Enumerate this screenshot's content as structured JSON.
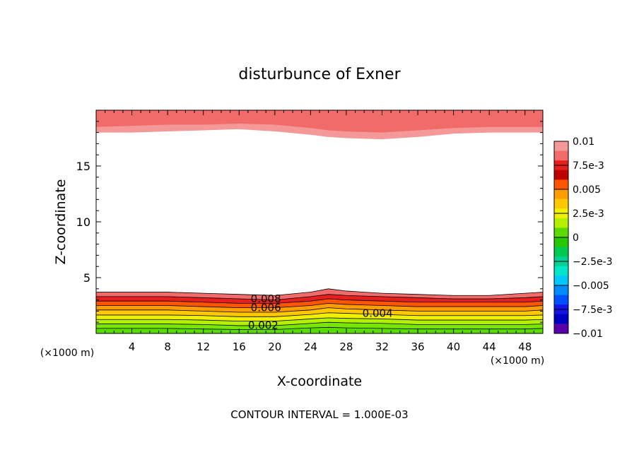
{
  "chart_data": {
    "type": "contour",
    "title": "disturbunce of Exner",
    "xlabel": "X-coordinate",
    "ylabel": "Z-coordinate",
    "x_unit": "(×1000 m)",
    "x_unit_right": "(×1000 m)",
    "xlim": [
      0,
      50
    ],
    "ylim": [
      0,
      20
    ],
    "x_ticks": [
      "4",
      "8",
      "12",
      "16",
      "20",
      "24",
      "28",
      "32",
      "36",
      "40",
      "44",
      "48"
    ],
    "y_ticks": [
      "5",
      "10",
      "15"
    ],
    "footer": "CONTOUR INTERVAL = 1.000E-03",
    "contour_labels": [
      "0.008",
      "0.006",
      "0.004",
      "0.002"
    ],
    "colorbar": {
      "labels": [
        "0.01",
        "7.5e-3",
        "0.005",
        "2.5e-3",
        "0",
        "-2.5e-3",
        "-0.005",
        "-7.5e-3",
        "-0.01"
      ],
      "colors": [
        "#f59898",
        "#f26b6b",
        "#e61e1e",
        "#bd0000",
        "#ff5500",
        "#ff9d00",
        "#ffc800",
        "#f0f000",
        "#b4f000",
        "#5adc00",
        "#28c800",
        "#00c850",
        "#00d296",
        "#00e6c8",
        "#00c8ff",
        "#008cff",
        "#0050ff",
        "#1414e6",
        "#0000c0",
        "#5a00aa"
      ]
    },
    "x": [
      0,
      4,
      8,
      12,
      16,
      20,
      24,
      26,
      28,
      32,
      36,
      40,
      44,
      48,
      50
    ],
    "lower_levels": [
      {
        "level": 0.009,
        "z": [
          3.7,
          3.7,
          3.7,
          3.6,
          3.5,
          3.4,
          3.7,
          4.0,
          3.8,
          3.6,
          3.5,
          3.4,
          3.4,
          3.6,
          3.7
        ]
      },
      {
        "level": 0.008,
        "z": [
          3.3,
          3.3,
          3.3,
          3.2,
          3.1,
          3.0,
          3.3,
          3.5,
          3.4,
          3.3,
          3.2,
          3.1,
          3.1,
          3.2,
          3.3
        ]
      },
      {
        "level": 0.007,
        "z": [
          2.9,
          2.9,
          2.9,
          2.8,
          2.7,
          2.7,
          2.9,
          3.1,
          3.0,
          2.9,
          2.8,
          2.8,
          2.8,
          2.8,
          2.9
        ]
      },
      {
        "level": 0.006,
        "z": [
          2.5,
          2.5,
          2.5,
          2.4,
          2.3,
          2.3,
          2.5,
          2.7,
          2.6,
          2.5,
          2.4,
          2.4,
          2.4,
          2.4,
          2.5
        ]
      },
      {
        "level": 0.005,
        "z": [
          2.1,
          2.1,
          2.1,
          2.0,
          1.9,
          1.9,
          2.1,
          2.3,
          2.2,
          2.1,
          2.0,
          2.0,
          2.0,
          2.0,
          2.1
        ]
      },
      {
        "level": 0.004,
        "z": [
          1.65,
          1.65,
          1.65,
          1.6,
          1.5,
          1.5,
          1.7,
          1.85,
          1.8,
          1.7,
          1.6,
          1.6,
          1.6,
          1.6,
          1.65
        ]
      },
      {
        "level": 0.003,
        "z": [
          1.25,
          1.25,
          1.25,
          1.2,
          1.1,
          1.1,
          1.3,
          1.4,
          1.35,
          1.3,
          1.2,
          1.2,
          1.2,
          1.2,
          1.25
        ]
      },
      {
        "level": 0.002,
        "z": [
          0.85,
          0.85,
          0.85,
          0.8,
          0.7,
          0.7,
          0.9,
          1.0,
          0.95,
          0.9,
          0.8,
          0.8,
          0.8,
          0.8,
          0.85
        ]
      },
      {
        "level": 0.001,
        "z": [
          0.45,
          0.45,
          0.45,
          0.4,
          0.35,
          0.35,
          0.5,
          0.55,
          0.5,
          0.45,
          0.4,
          0.4,
          0.4,
          0.4,
          0.45
        ]
      }
    ],
    "upper_levels": [
      {
        "level": 0.009,
        "z": [
          18.5,
          18.6,
          18.7,
          18.7,
          18.8,
          18.7,
          18.4,
          18.2,
          18.1,
          18.0,
          18.2,
          18.4,
          18.5,
          18.5,
          18.5
        ]
      },
      {
        "level": 0.01,
        "z": [
          18.0,
          18.0,
          18.1,
          18.2,
          18.3,
          18.1,
          17.8,
          17.6,
          17.5,
          17.4,
          17.6,
          17.9,
          18.0,
          18.0,
          18.0
        ]
      }
    ]
  }
}
